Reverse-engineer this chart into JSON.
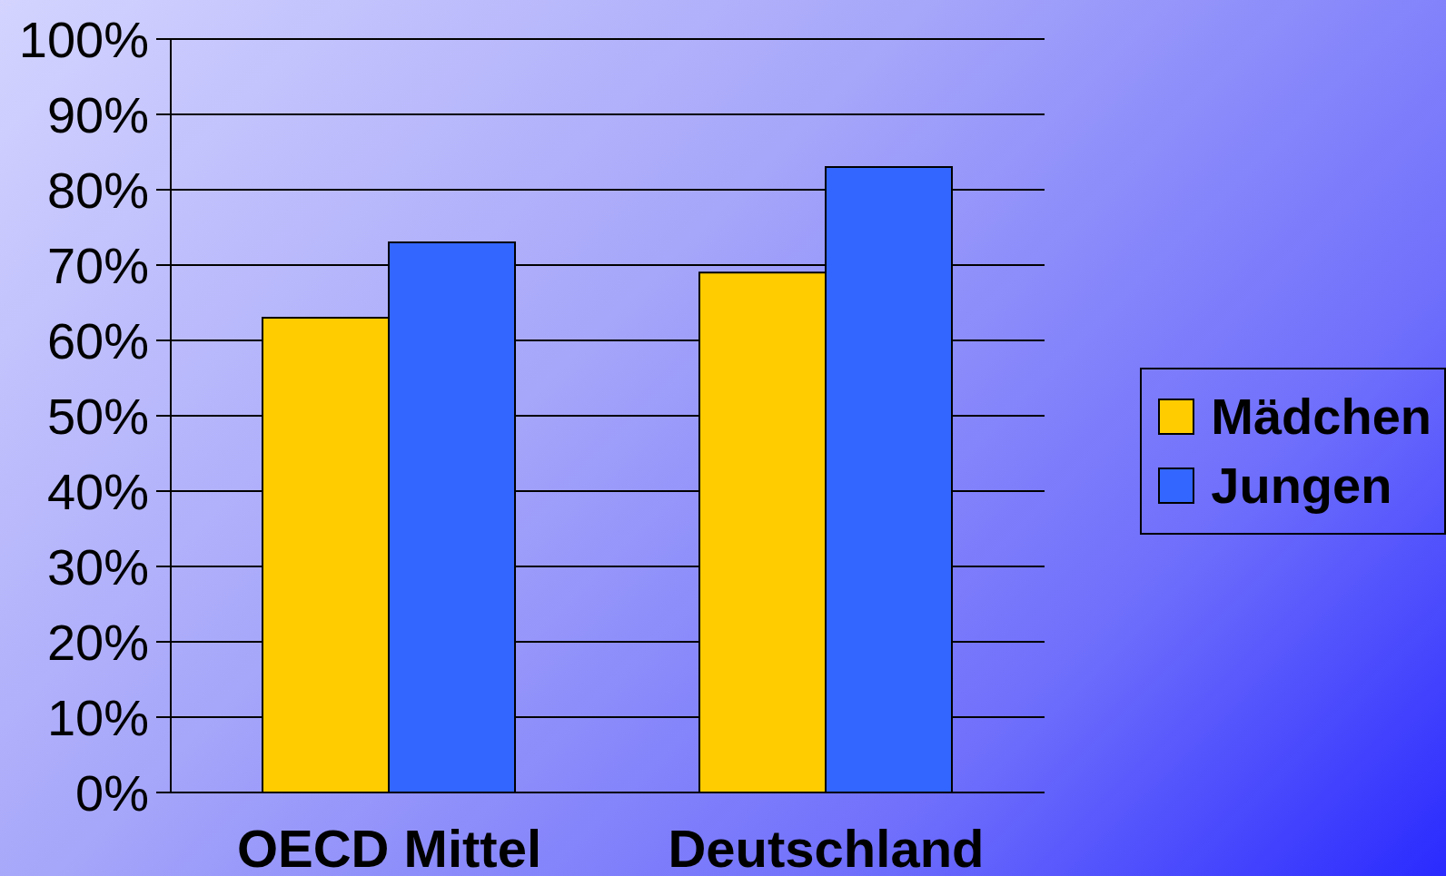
{
  "chart_data": {
    "type": "bar",
    "categories": [
      "OECD Mittel",
      "Deutschland"
    ],
    "series": [
      {
        "name": "Mädchen",
        "color": "#ffcc00",
        "values": [
          63,
          69
        ]
      },
      {
        "name": "Jungen",
        "color": "#3366ff",
        "values": [
          73,
          83
        ]
      }
    ],
    "ylim": [
      0,
      100
    ],
    "yticks": [
      {
        "value": 0,
        "label": "0%"
      },
      {
        "value": 10,
        "label": "10%"
      },
      {
        "value": 20,
        "label": "20%"
      },
      {
        "value": 30,
        "label": "30%"
      },
      {
        "value": 40,
        "label": "40%"
      },
      {
        "value": 50,
        "label": "50%"
      },
      {
        "value": 60,
        "label": "60%"
      },
      {
        "value": 70,
        "label": "70%"
      },
      {
        "value": 80,
        "label": "80%"
      },
      {
        "value": 90,
        "label": "90%"
      },
      {
        "value": 100,
        "label": "100%"
      }
    ],
    "grid": "y",
    "legend": "right"
  }
}
